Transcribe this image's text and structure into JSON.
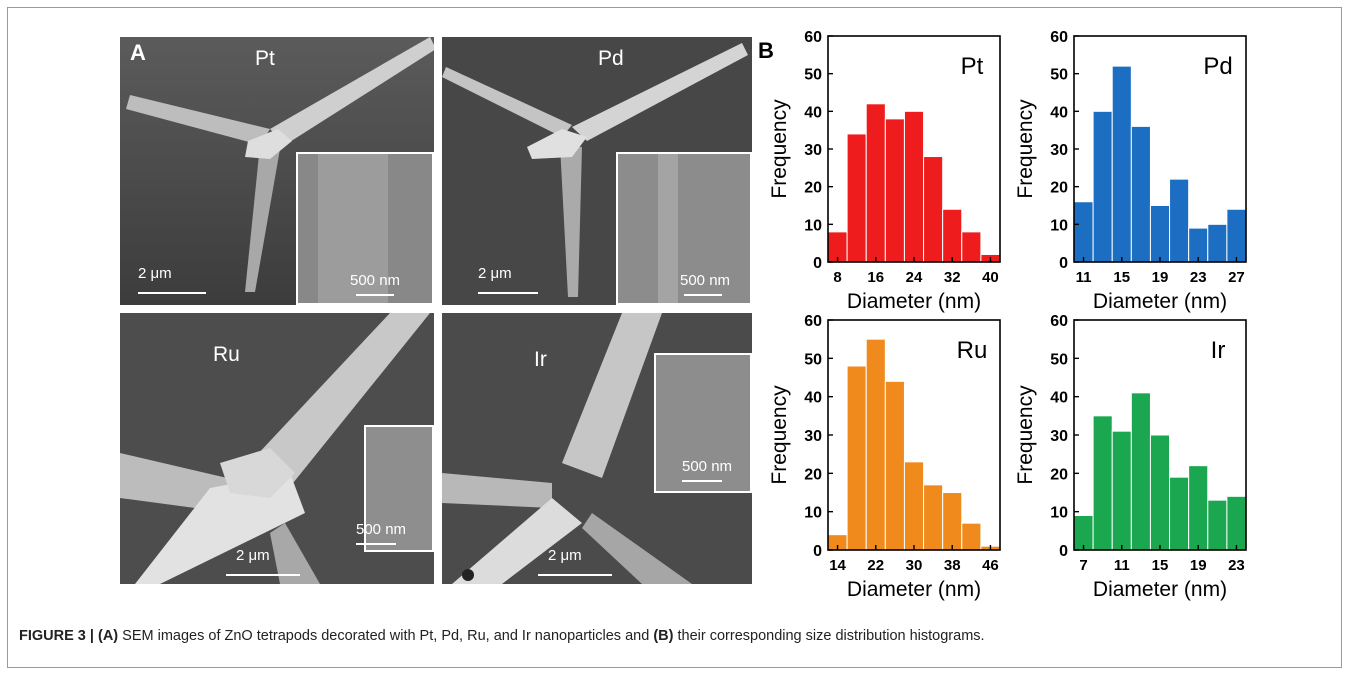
{
  "panel_a_label": "A",
  "panel_b_label": "B",
  "sem_images": [
    {
      "label": "Pt",
      "scale": "2 μm",
      "inset_scale": "500 nm"
    },
    {
      "label": "Pd",
      "scale": "2 μm",
      "inset_scale": "500 nm"
    },
    {
      "label": "Ru",
      "scale": "2 μm",
      "inset_scale": "500 nm"
    },
    {
      "label": "Ir",
      "scale": "2 μm",
      "inset_scale": "500 nm"
    }
  ],
  "caption": {
    "prefix": "FIGURE 3 | ",
    "a_tag": "(A)",
    "mid": " SEM images of ZnO tetrapods decorated with Pt, Pd, Ru, and Ir nanoparticles and ",
    "b_tag": "(B)",
    "suffix": " their corresponding size distribution histograms."
  },
  "chart_data": [
    {
      "type": "bar",
      "label": "Pt",
      "color": "#ee1c1c",
      "xlabel": "Diameter (nm)",
      "ylabel": "Frequency",
      "ylim": [
        0,
        60
      ],
      "yticks": [
        0,
        10,
        20,
        30,
        40,
        50,
        60
      ],
      "x_tick_labels": [
        "8",
        "16",
        "24",
        "32",
        "40"
      ],
      "bin_start": 7,
      "bin_width": 3,
      "bin_tick_indices": [
        0,
        3,
        6,
        9,
        12
      ],
      "values": [
        8,
        34,
        42,
        38,
        40,
        28,
        14,
        8,
        2
      ]
    },
    {
      "type": "bar",
      "label": "Pd",
      "color": "#1c6ec2",
      "xlabel": "Diameter (nm)",
      "ylabel": "Frequency",
      "ylim": [
        0,
        60
      ],
      "yticks": [
        0,
        10,
        20,
        30,
        40,
        50,
        60
      ],
      "x_tick_labels": [
        "11",
        "15",
        "19",
        "23",
        "27"
      ],
      "values": [
        16,
        40,
        52,
        36,
        15,
        22,
        9,
        10,
        14
      ]
    },
    {
      "type": "bar",
      "label": "Ru",
      "color": "#f08a1c",
      "xlabel": "Diameter (nm)",
      "ylabel": "Frequency",
      "ylim": [
        0,
        60
      ],
      "yticks": [
        0,
        10,
        20,
        30,
        40,
        50,
        60
      ],
      "x_tick_labels": [
        "14",
        "22",
        "30",
        "38",
        "46"
      ],
      "values": [
        4,
        48,
        55,
        44,
        23,
        17,
        15,
        7,
        1
      ]
    },
    {
      "type": "bar",
      "label": "Ir",
      "color": "#1aa74f",
      "xlabel": "Diameter (nm)",
      "ylabel": "Frequency",
      "ylim": [
        0,
        60
      ],
      "yticks": [
        0,
        10,
        20,
        30,
        40,
        50,
        60
      ],
      "x_tick_labels": [
        "7",
        "11",
        "15",
        "19",
        "23"
      ],
      "values": [
        9,
        35,
        31,
        41,
        30,
        19,
        22,
        13,
        14
      ]
    }
  ]
}
